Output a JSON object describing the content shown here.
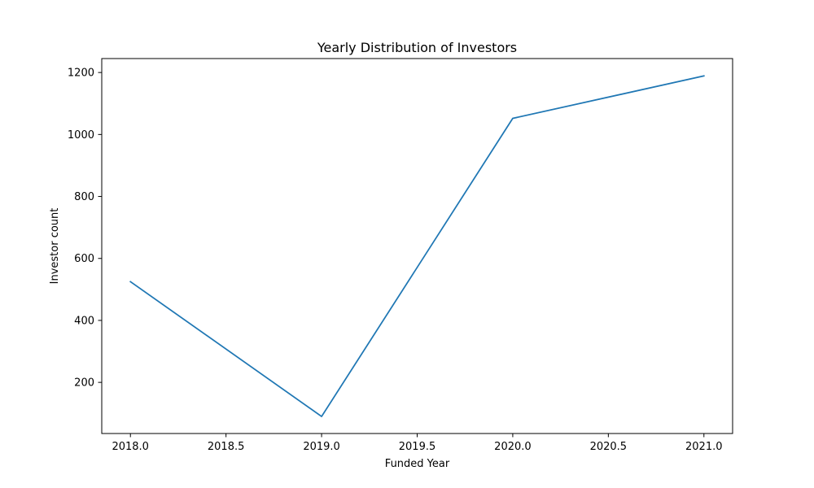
{
  "chart_data": {
    "type": "line",
    "title": "Yearly Distribution of Investors",
    "xlabel": "Funded Year",
    "ylabel": "Investor count",
    "x": [
      2018,
      2019,
      2020,
      2021
    ],
    "series": [
      {
        "values": [
          525,
          90,
          1052,
          1189
        ],
        "color": "#1f77b4"
      }
    ],
    "xlim": [
      2017.85,
      2021.15
    ],
    "ylim": [
      35,
      1245
    ],
    "xticks": [
      2018.0,
      2018.5,
      2019.0,
      2019.5,
      2020.0,
      2020.5,
      2021.0
    ],
    "xtick_labels": [
      "2018.0",
      "2018.5",
      "2019.0",
      "2019.5",
      "2020.0",
      "2020.5",
      "2021.0"
    ],
    "yticks": [
      200,
      400,
      600,
      800,
      1000,
      1200
    ],
    "ytick_labels": [
      "200",
      "400",
      "600",
      "800",
      "1000",
      "1200"
    ],
    "grid": false,
    "legend": "none"
  }
}
